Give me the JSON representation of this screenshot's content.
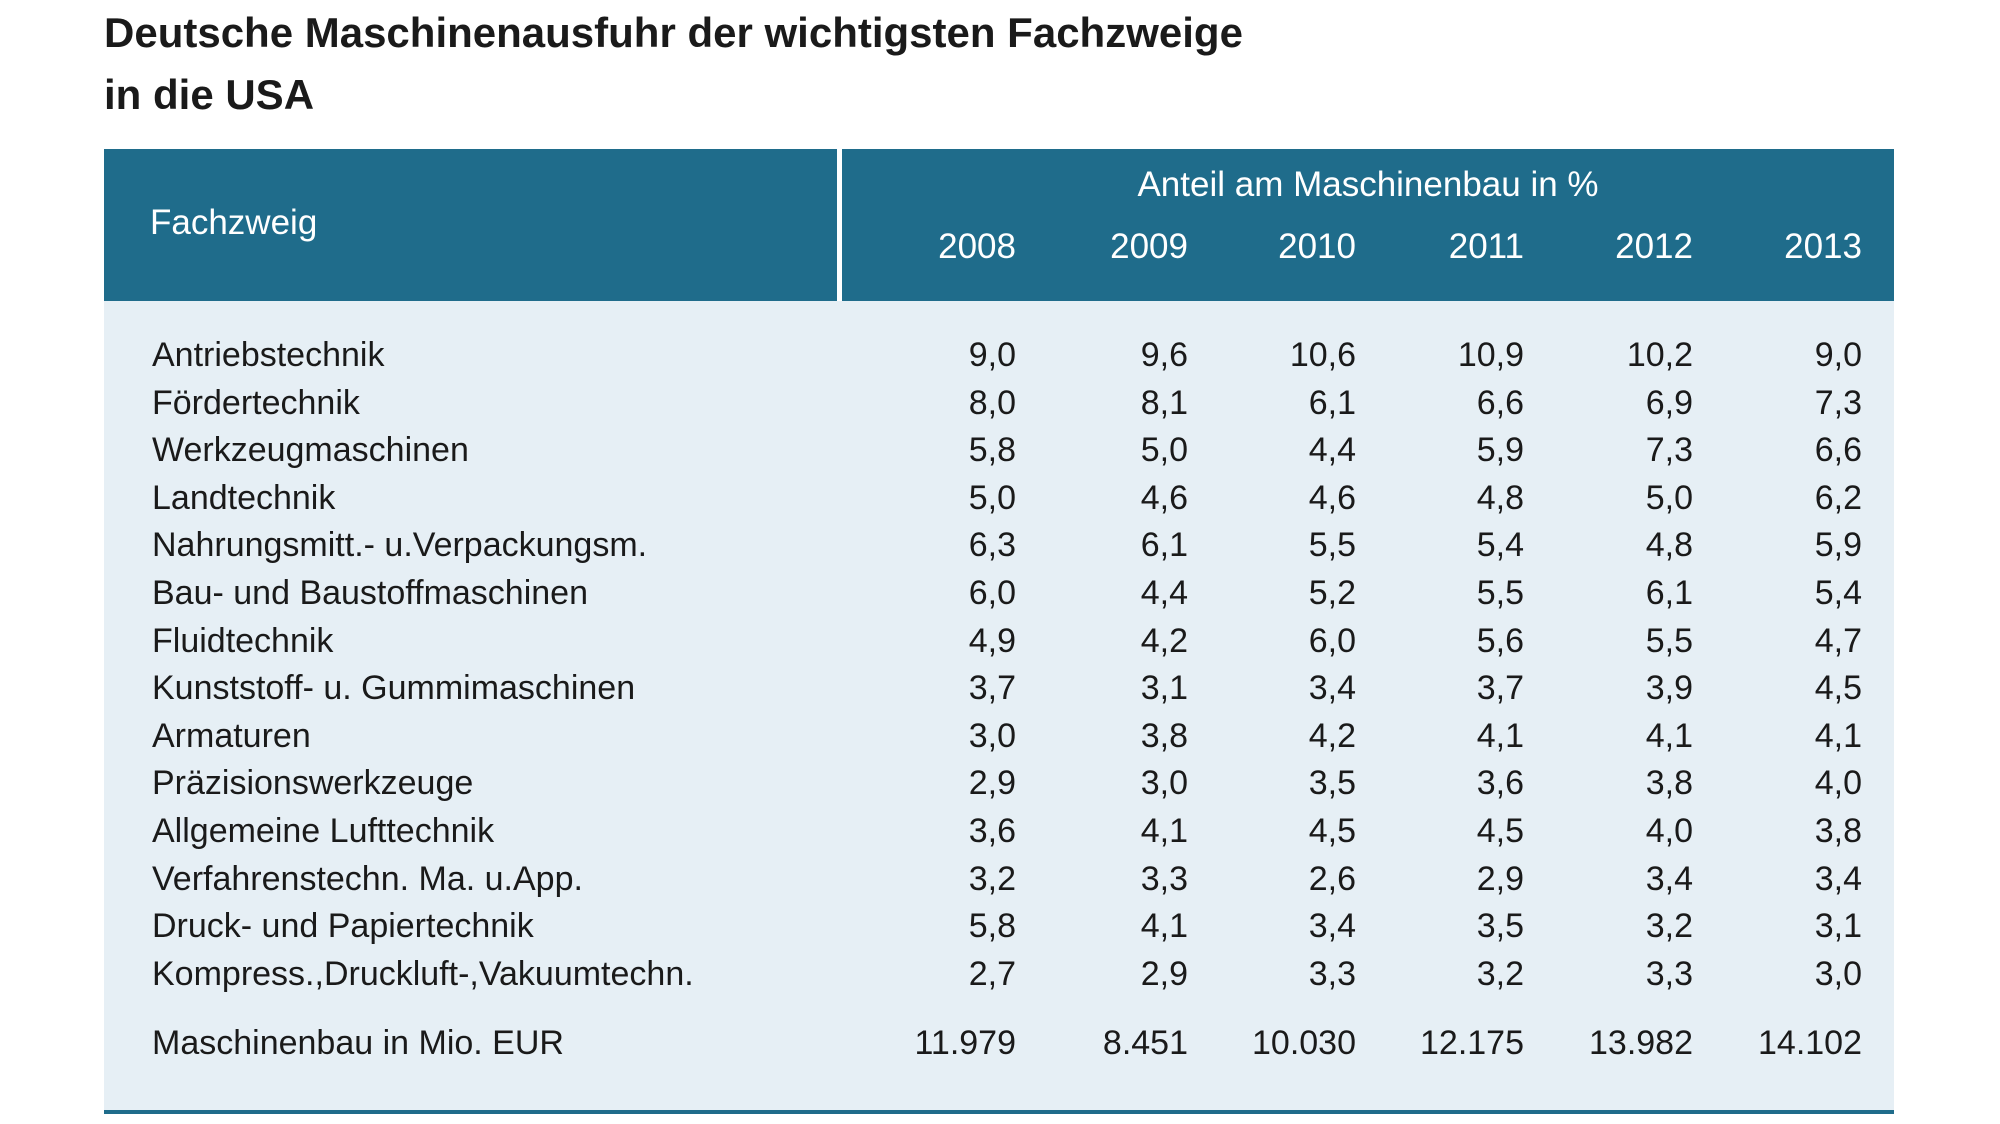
{
  "title": {
    "line1": "Deutsche Maschinenausfuhr der wichtigsten Fachzweige",
    "line2": "in die USA"
  },
  "colors": {
    "header_bg": "#1f6c8b",
    "body_bg": "#e6eff5",
    "header_text": "#ffffff"
  },
  "chart_data": {
    "type": "table",
    "row_header": "Fachzweig",
    "column_group": "Anteil am Maschinenbau in %",
    "columns": [
      "2008",
      "2009",
      "2010",
      "2011",
      "2012",
      "2013"
    ],
    "rows": [
      {
        "label": "Antriebstechnik",
        "values": [
          "9,0",
          "9,6",
          "10,6",
          "10,9",
          "10,2",
          "9,0"
        ]
      },
      {
        "label": "Fördertechnik",
        "values": [
          "8,0",
          "8,1",
          "6,1",
          "6,6",
          "6,9",
          "7,3"
        ]
      },
      {
        "label": "Werkzeugmaschinen",
        "values": [
          "5,8",
          "5,0",
          "4,4",
          "5,9",
          "7,3",
          "6,6"
        ]
      },
      {
        "label": "Landtechnik",
        "values": [
          "5,0",
          "4,6",
          "4,6",
          "4,8",
          "5,0",
          "6,2"
        ]
      },
      {
        "label": "Nahrungsmitt.- u.Verpackungsm.",
        "values": [
          "6,3",
          "6,1",
          "5,5",
          "5,4",
          "4,8",
          "5,9"
        ]
      },
      {
        "label": "Bau- und Baustoffmaschinen",
        "values": [
          "6,0",
          "4,4",
          "5,2",
          "5,5",
          "6,1",
          "5,4"
        ]
      },
      {
        "label": "Fluidtechnik",
        "values": [
          "4,9",
          "4,2",
          "6,0",
          "5,6",
          "5,5",
          "4,7"
        ]
      },
      {
        "label": "Kunststoff- u. Gummimaschinen",
        "values": [
          "3,7",
          "3,1",
          "3,4",
          "3,7",
          "3,9",
          "4,5"
        ]
      },
      {
        "label": "Armaturen",
        "values": [
          "3,0",
          "3,8",
          "4,2",
          "4,1",
          "4,1",
          "4,1"
        ]
      },
      {
        "label": "Präzisionswerkzeuge",
        "values": [
          "2,9",
          "3,0",
          "3,5",
          "3,6",
          "3,8",
          "4,0"
        ]
      },
      {
        "label": "Allgemeine Lufttechnik",
        "values": [
          "3,6",
          "4,1",
          "4,5",
          "4,5",
          "4,0",
          "3,8"
        ]
      },
      {
        "label": "Verfahrenstechn. Ma. u.App.",
        "values": [
          "3,2",
          "3,3",
          "2,6",
          "2,9",
          "3,4",
          "3,4"
        ]
      },
      {
        "label": "Druck- und Papiertechnik",
        "values": [
          "5,8",
          "4,1",
          "3,4",
          "3,5",
          "3,2",
          "3,1"
        ]
      },
      {
        "label": "Kompress.,Druckluft-,Vakuumtechn.",
        "values": [
          "2,7",
          "2,9",
          "3,3",
          "3,2",
          "3,3",
          "3,0"
        ]
      }
    ],
    "total_row": {
      "label": "Maschinenbau in Mio. EUR",
      "values": [
        "11.979",
        "8.451",
        "10.030",
        "12.175",
        "13.982",
        "14.102"
      ]
    }
  }
}
